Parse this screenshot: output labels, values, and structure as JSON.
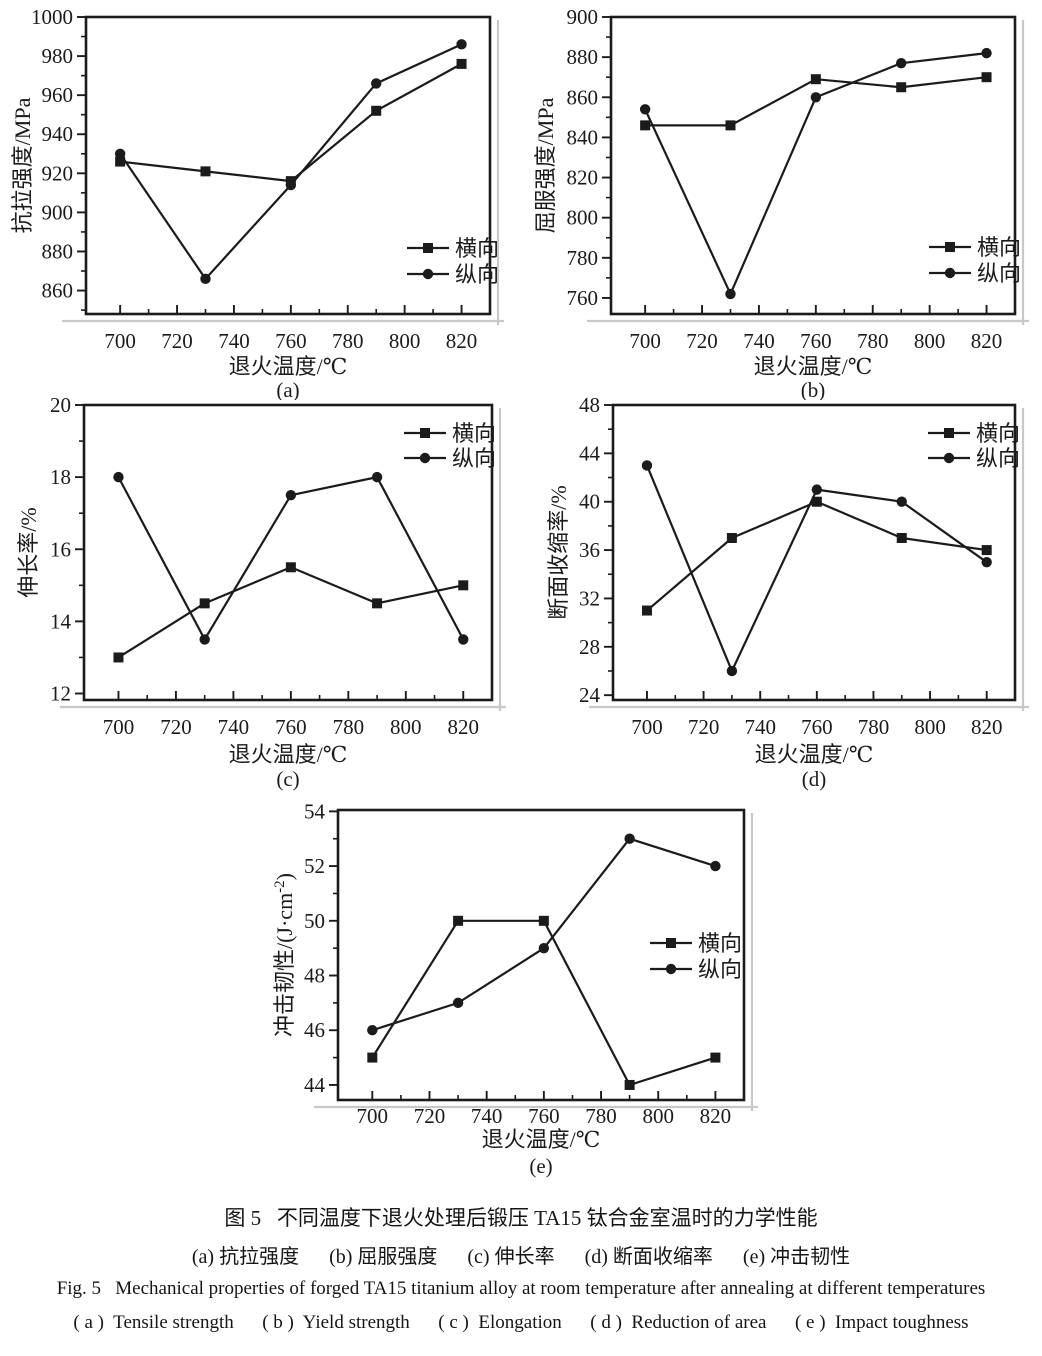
{
  "page": {
    "background": "#ffffff",
    "ink_color": "#1b1b1b",
    "shadow_color": "#c8c8c8"
  },
  "xlabel": "退火温度/℃",
  "series_labels": {
    "transverse": "横向",
    "longitudinal": "纵向"
  },
  "chart_data": [
    {
      "id": "a",
      "type": "line",
      "subplot_label": "(a)",
      "ylabel": "抗拉强度/MPa",
      "x": [
        700,
        730,
        760,
        790,
        820
      ],
      "xticks": [
        700,
        720,
        740,
        760,
        780,
        800,
        820
      ],
      "xlim": [
        688,
        830
      ],
      "yticks": [
        860,
        880,
        900,
        920,
        940,
        960,
        980,
        1000
      ],
      "ylim": [
        848,
        1000
      ],
      "grid": false,
      "legend_pos": "bottom-right",
      "series": [
        {
          "name": "横向",
          "marker": "square",
          "values": [
            926,
            921,
            916,
            952,
            976
          ]
        },
        {
          "name": "纵向",
          "marker": "circle",
          "values": [
            930,
            866,
            914,
            966,
            986
          ]
        }
      ]
    },
    {
      "id": "b",
      "type": "line",
      "subplot_label": "(b)",
      "ylabel": "屈服强度/MPa",
      "x": [
        700,
        730,
        760,
        790,
        820
      ],
      "xticks": [
        700,
        720,
        740,
        760,
        780,
        800,
        820
      ],
      "xlim": [
        688,
        830
      ],
      "yticks": [
        760,
        780,
        800,
        820,
        840,
        860,
        880,
        900
      ],
      "ylim": [
        752,
        900
      ],
      "grid": false,
      "legend_pos": "bottom-right",
      "series": [
        {
          "name": "横向",
          "marker": "square",
          "values": [
            846,
            846,
            869,
            865,
            870
          ]
        },
        {
          "name": "纵向",
          "marker": "circle",
          "values": [
            854,
            762,
            860,
            877,
            882
          ]
        }
      ]
    },
    {
      "id": "c",
      "type": "line",
      "subplot_label": "(c)",
      "ylabel": "伸长率/%",
      "x": [
        700,
        730,
        760,
        790,
        820
      ],
      "xticks": [
        700,
        720,
        740,
        760,
        780,
        800,
        820
      ],
      "xlim": [
        688,
        830
      ],
      "yticks": [
        12,
        14,
        16,
        18,
        20
      ],
      "ylim": [
        11.82,
        20
      ],
      "grid": false,
      "legend_pos": "top-right",
      "series": [
        {
          "name": "横向",
          "marker": "square",
          "values": [
            13,
            14.5,
            15.5,
            14.5,
            15
          ]
        },
        {
          "name": "纵向",
          "marker": "circle",
          "values": [
            18,
            13.5,
            17.5,
            18,
            13.5
          ]
        }
      ]
    },
    {
      "id": "d",
      "type": "line",
      "subplot_label": "(d)",
      "ylabel": "断面收缩率/%",
      "x": [
        700,
        730,
        760,
        790,
        820
      ],
      "xticks": [
        700,
        720,
        740,
        760,
        780,
        800,
        820
      ],
      "xlim": [
        688,
        830
      ],
      "yticks": [
        24,
        28,
        32,
        36,
        40,
        44,
        48
      ],
      "ylim": [
        23.6,
        48
      ],
      "grid": false,
      "legend_pos": "top-right",
      "series": [
        {
          "name": "横向",
          "marker": "square",
          "values": [
            31,
            37,
            40,
            37,
            36
          ]
        },
        {
          "name": "纵向",
          "marker": "circle",
          "values": [
            43,
            26,
            41,
            40,
            35
          ]
        }
      ]
    },
    {
      "id": "e",
      "type": "line",
      "subplot_label": "(e)",
      "ylabel": "冲击韧性/(J·cm⁻²)",
      "x": [
        700,
        730,
        760,
        790,
        820
      ],
      "xticks": [
        700,
        720,
        740,
        760,
        780,
        800,
        820
      ],
      "xlim": [
        688,
        830
      ],
      "yticks": [
        44,
        46,
        48,
        50,
        52,
        54
      ],
      "ylim": [
        43.45,
        54.05
      ],
      "grid": false,
      "legend_pos": "middle-right",
      "series": [
        {
          "name": "横向",
          "marker": "square",
          "values": [
            45,
            50,
            50,
            44,
            45
          ]
        },
        {
          "name": "纵向",
          "marker": "circle",
          "values": [
            46,
            47,
            49,
            53,
            52
          ]
        }
      ]
    }
  ],
  "caption": {
    "zh_title": "图 5   不同温度下退火处理后锻压 TA15 钛合金室温时的力学性能",
    "zh_sub": "(a) 抗拉强度      (b) 屈服强度      (c) 伸长率      (d) 断面收缩率      (e) 冲击韧性",
    "en_title": "Fig. 5   Mechanical properties of forged TA15 titanium alloy at room temperature after annealing at different temperatures",
    "en_sub": "( a )  Tensile strength      ( b )  Yield strength      ( c )  Elongation      ( d )  Reduction of area      ( e )  Impact toughness"
  }
}
